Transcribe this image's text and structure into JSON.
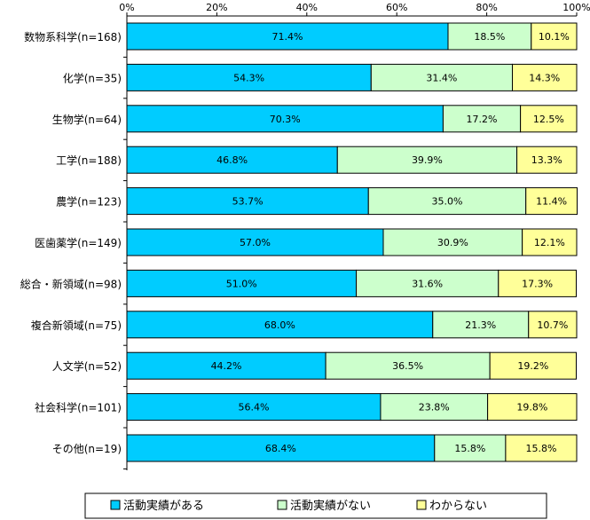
{
  "chart_data": {
    "type": "bar",
    "orientation": "horizontal",
    "stacked": true,
    "xlim": [
      0,
      100
    ],
    "x_ticks": [
      "0%",
      "20%",
      "40%",
      "60%",
      "80%",
      "100%"
    ],
    "x_tick_values": [
      0,
      20,
      40,
      60,
      80,
      100
    ],
    "categories": [
      "数物系科学(n=168)",
      "化学(n=35)",
      "生物学(n=64)",
      "工学(n=188)",
      "農学(n=123)",
      "医歯薬学(n=149)",
      "総合・新領域(n=98)",
      "複合新領域(n=75)",
      "人文学(n=52)",
      "社会科学(n=101)",
      "その他(n=19)"
    ],
    "series": [
      {
        "name": "活動実績がある",
        "color": "#00ccff",
        "values": [
          71.4,
          54.3,
          70.3,
          46.8,
          53.7,
          57.0,
          51.0,
          68.0,
          44.2,
          56.4,
          68.4
        ],
        "labels": [
          "71.4%",
          "54.3%",
          "70.3%",
          "46.8%",
          "53.7%",
          "57.0%",
          "51.0%",
          "68.0%",
          "44.2%",
          "56.4%",
          "68.4%"
        ]
      },
      {
        "name": "活動実績がない",
        "color": "#ccffcc",
        "values": [
          18.5,
          31.4,
          17.2,
          39.9,
          35.0,
          30.9,
          31.6,
          21.3,
          36.5,
          23.8,
          15.8
        ],
        "labels": [
          "18.5%",
          "31.4%",
          "17.2%",
          "39.9%",
          "35.0%",
          "30.9%",
          "31.6%",
          "21.3%",
          "36.5%",
          "23.8%",
          "15.8%"
        ]
      },
      {
        "name": "わからない",
        "color": "#ffff99",
        "values": [
          10.1,
          14.3,
          12.5,
          13.3,
          11.4,
          12.1,
          17.3,
          10.7,
          19.2,
          19.8,
          15.8
        ],
        "labels": [
          "10.1%",
          "14.3%",
          "12.5%",
          "13.3%",
          "11.4%",
          "12.1%",
          "17.3%",
          "10.7%",
          "19.2%",
          "19.8%",
          "15.8%"
        ]
      }
    ],
    "legend_position": "bottom",
    "grid": false
  }
}
